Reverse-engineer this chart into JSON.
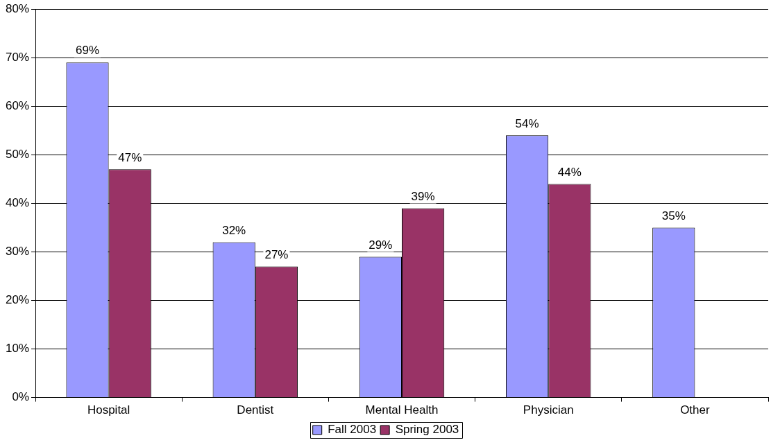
{
  "chart_data": {
    "type": "bar",
    "categories": [
      "Hospital",
      "Dentist",
      "Mental Health",
      "Physician",
      "Other"
    ],
    "series": [
      {
        "name": "Fall 2003",
        "color": "#9999ff",
        "values": [
          69,
          32,
          29,
          54,
          35
        ],
        "value_labels": [
          "69%",
          "32%",
          "29%",
          "54%",
          "35%"
        ]
      },
      {
        "name": "Spring 2003",
        "color": "#993366",
        "values": [
          47,
          27,
          39,
          44,
          null
        ],
        "value_labels": [
          "47%",
          "27%",
          "39%",
          "44%",
          null
        ]
      }
    ],
    "ylim": [
      0,
      80
    ],
    "yticks": [
      {
        "value": 0,
        "label": "0%"
      },
      {
        "value": 10,
        "label": "10%"
      },
      {
        "value": 20,
        "label": "20%"
      },
      {
        "value": 30,
        "label": "30%"
      },
      {
        "value": 40,
        "label": "40%"
      },
      {
        "value": 50,
        "label": "50%"
      },
      {
        "value": 60,
        "label": "60%"
      },
      {
        "value": 70,
        "label": "70%"
      },
      {
        "value": 80,
        "label": "80%"
      }
    ],
    "grid": "y",
    "legend": "bottom"
  }
}
